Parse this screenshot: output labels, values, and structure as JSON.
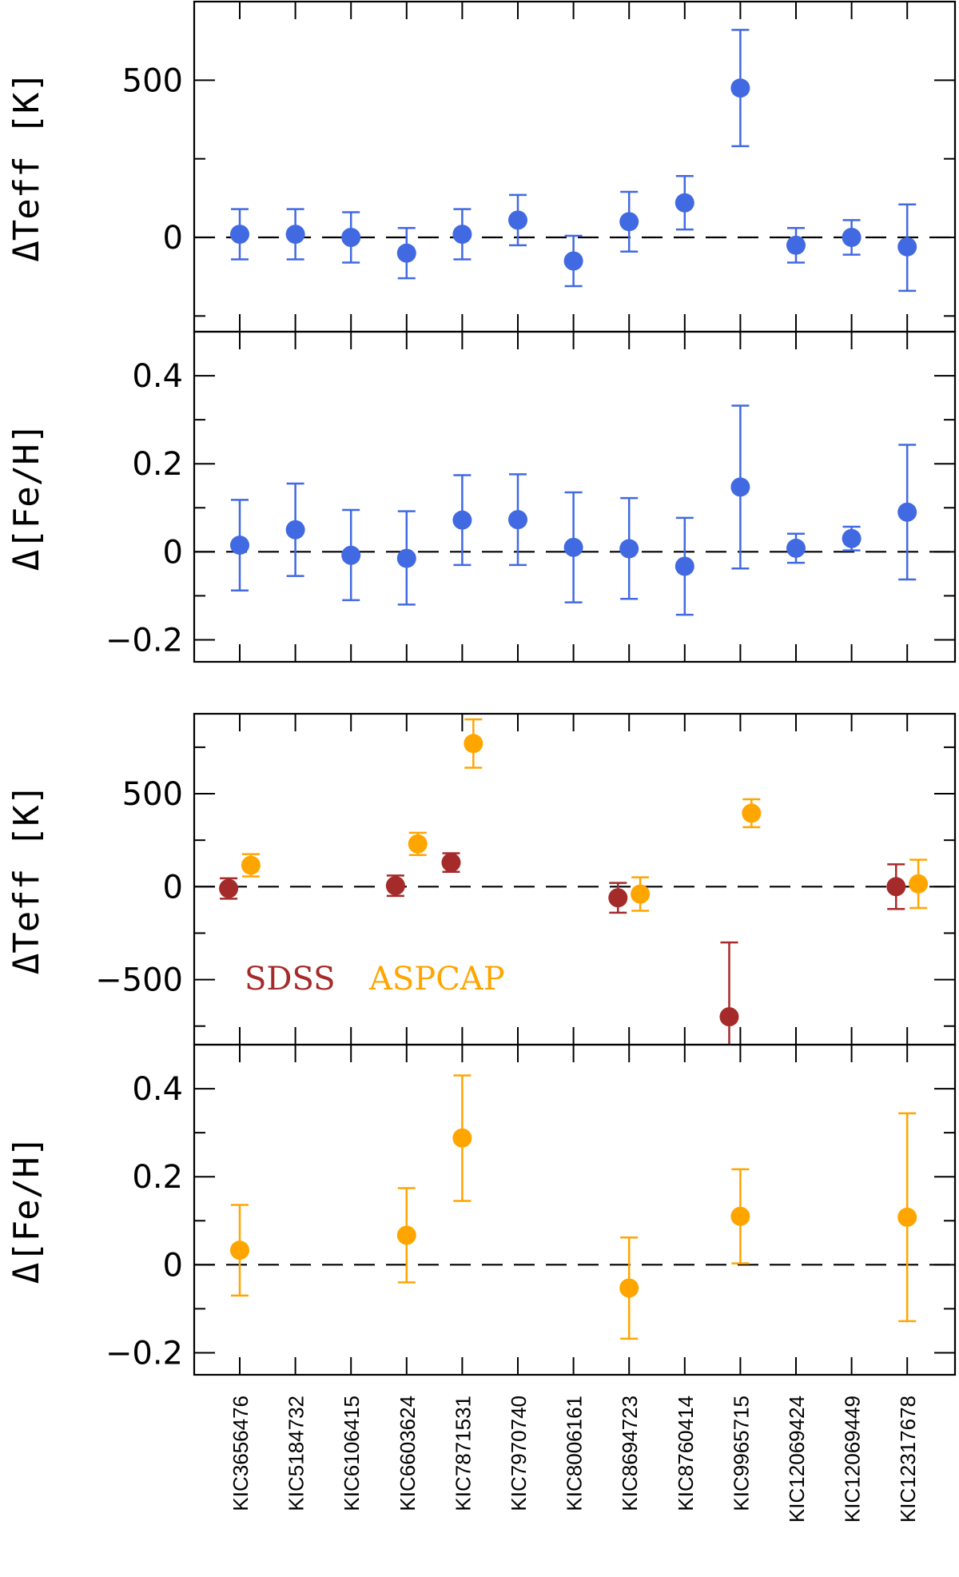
{
  "colors": {
    "ssi": "#4169e1",
    "sdss": "#a52a2a",
    "aspcap": "#ffa500"
  },
  "legend": {
    "sdss": "SDSS",
    "aspcap": "ASPCAP"
  },
  "categories": [
    "KIC3656476",
    "KIC5184732",
    "KIC6106415",
    "KIC6603624",
    "KIC7871531",
    "KIC7970740",
    "KIC8006161",
    "KIC8694723",
    "KIC8760414",
    "KIC9965715",
    "KIC12069424",
    "KIC12069449",
    "KIC12317678"
  ],
  "chart_data": [
    {
      "type": "scatter",
      "panel": "top-teff",
      "ylabel": "ΔTeff [K]",
      "ylim": [
        -300,
        750
      ],
      "yticks": [
        0,
        500
      ],
      "series": [
        {
          "color_key": "ssi",
          "offset": 0,
          "points": [
            {
              "cat": "KIC3656476",
              "y": 10,
              "lo": -70,
              "hi": 90
            },
            {
              "cat": "KIC5184732",
              "y": 10,
              "lo": -70,
              "hi": 90
            },
            {
              "cat": "KIC6106415",
              "y": 0,
              "lo": -80,
              "hi": 80
            },
            {
              "cat": "KIC6603624",
              "y": -50,
              "lo": -130,
              "hi": 30
            },
            {
              "cat": "KIC7871531",
              "y": 10,
              "lo": -70,
              "hi": 90
            },
            {
              "cat": "KIC7970740",
              "y": 55,
              "lo": -25,
              "hi": 135
            },
            {
              "cat": "KIC8006161",
              "y": -75,
              "lo": -155,
              "hi": 5
            },
            {
              "cat": "KIC8694723",
              "y": 50,
              "lo": -45,
              "hi": 145
            },
            {
              "cat": "KIC8760414",
              "y": 110,
              "lo": 25,
              "hi": 195
            },
            {
              "cat": "KIC9965715",
              "y": 475,
              "lo": 290,
              "hi": 660
            },
            {
              "cat": "KIC12069424",
              "y": -25,
              "lo": -80,
              "hi": 30
            },
            {
              "cat": "KIC12069449",
              "y": 0,
              "lo": -55,
              "hi": 55
            },
            {
              "cat": "KIC12317678",
              "y": -30,
              "lo": -170,
              "hi": 105
            }
          ]
        }
      ]
    },
    {
      "type": "scatter",
      "panel": "top-feh",
      "ylabel": "Δ[Fe/H]",
      "ylim": [
        -0.25,
        0.5
      ],
      "yticks": [
        -0.2,
        0,
        0.2,
        0.4
      ],
      "ytick_labels": [
        "−0.2",
        "0",
        "0.2",
        "0.4"
      ],
      "series": [
        {
          "color_key": "ssi",
          "offset": 0,
          "points": [
            {
              "cat": "KIC3656476",
              "y": 0.015,
              "lo": -0.088,
              "hi": 0.118
            },
            {
              "cat": "KIC5184732",
              "y": 0.05,
              "lo": -0.055,
              "hi": 0.155
            },
            {
              "cat": "KIC6106415",
              "y": -0.008,
              "lo": -0.11,
              "hi": 0.095
            },
            {
              "cat": "KIC6603624",
              "y": -0.015,
              "lo": -0.12,
              "hi": 0.092
            },
            {
              "cat": "KIC7871531",
              "y": 0.072,
              "lo": -0.03,
              "hi": 0.174
            },
            {
              "cat": "KIC7970740",
              "y": 0.073,
              "lo": -0.03,
              "hi": 0.176
            },
            {
              "cat": "KIC8006161",
              "y": 0.01,
              "lo": -0.115,
              "hi": 0.135
            },
            {
              "cat": "KIC8694723",
              "y": 0.007,
              "lo": -0.107,
              "hi": 0.122
            },
            {
              "cat": "KIC8760414",
              "y": -0.033,
              "lo": -0.143,
              "hi": 0.077
            },
            {
              "cat": "KIC9965715",
              "y": 0.147,
              "lo": -0.038,
              "hi": 0.332
            },
            {
              "cat": "KIC12069424",
              "y": 0.008,
              "lo": -0.025,
              "hi": 0.041
            },
            {
              "cat": "KIC12069449",
              "y": 0.03,
              "lo": 0.003,
              "hi": 0.057
            },
            {
              "cat": "KIC12317678",
              "y": 0.09,
              "lo": -0.063,
              "hi": 0.243
            }
          ]
        }
      ]
    },
    {
      "type": "scatter",
      "panel": "bottom-teff",
      "ylabel": "ΔTeff [K]",
      "ylim": [
        -850,
        930
      ],
      "yticks": [
        -500,
        0,
        500
      ],
      "ytick_labels": [
        "−500",
        "0",
        "500"
      ],
      "series": [
        {
          "name": "SDSS",
          "color_key": "sdss",
          "offset": -0.2,
          "points": [
            {
              "cat": "KIC3656476",
              "y": -10,
              "lo": -65,
              "hi": 45
            },
            {
              "cat": "KIC6603624",
              "y": 5,
              "lo": -50,
              "hi": 60
            },
            {
              "cat": "KIC7871531",
              "y": 130,
              "lo": 80,
              "hi": 180
            },
            {
              "cat": "KIC8694723",
              "y": -60,
              "lo": -140,
              "hi": 20
            },
            {
              "cat": "KIC9965715",
              "y": -700,
              "lo": -1100,
              "hi": -300
            },
            {
              "cat": "KIC12317678",
              "y": 0,
              "lo": -120,
              "hi": 120
            }
          ]
        },
        {
          "name": "ASPCAP",
          "color_key": "aspcap",
          "offset": 0.2,
          "points": [
            {
              "cat": "KIC3656476",
              "y": 115,
              "lo": 55,
              "hi": 175
            },
            {
              "cat": "KIC6603624",
              "y": 230,
              "lo": 170,
              "hi": 290
            },
            {
              "cat": "KIC7871531",
              "y": 770,
              "lo": 640,
              "hi": 900
            },
            {
              "cat": "KIC8694723",
              "y": -40,
              "lo": -130,
              "hi": 50
            },
            {
              "cat": "KIC9965715",
              "y": 395,
              "lo": 320,
              "hi": 470
            },
            {
              "cat": "KIC12317678",
              "y": 15,
              "lo": -115,
              "hi": 145
            }
          ]
        }
      ]
    },
    {
      "type": "scatter",
      "panel": "bottom-feh",
      "ylabel": "Δ[Fe/H]",
      "ylim": [
        -0.25,
        0.5
      ],
      "yticks": [
        -0.2,
        0,
        0.2,
        0.4
      ],
      "ytick_labels": [
        "−0.2",
        "0",
        "0.2",
        "0.4"
      ],
      "series": [
        {
          "name": "ASPCAP",
          "color_key": "aspcap",
          "offset": 0,
          "points": [
            {
              "cat": "KIC3656476",
              "y": 0.033,
              "lo": -0.07,
              "hi": 0.136
            },
            {
              "cat": "KIC6603624",
              "y": 0.067,
              "lo": -0.04,
              "hi": 0.174
            },
            {
              "cat": "KIC7871531",
              "y": 0.288,
              "lo": 0.145,
              "hi": 0.43
            },
            {
              "cat": "KIC8694723",
              "y": -0.053,
              "lo": -0.168,
              "hi": 0.062
            },
            {
              "cat": "KIC9965715",
              "y": 0.11,
              "lo": 0.003,
              "hi": 0.217
            },
            {
              "cat": "KIC12317678",
              "y": 0.108,
              "lo": -0.128,
              "hi": 0.344
            }
          ]
        }
      ]
    }
  ]
}
